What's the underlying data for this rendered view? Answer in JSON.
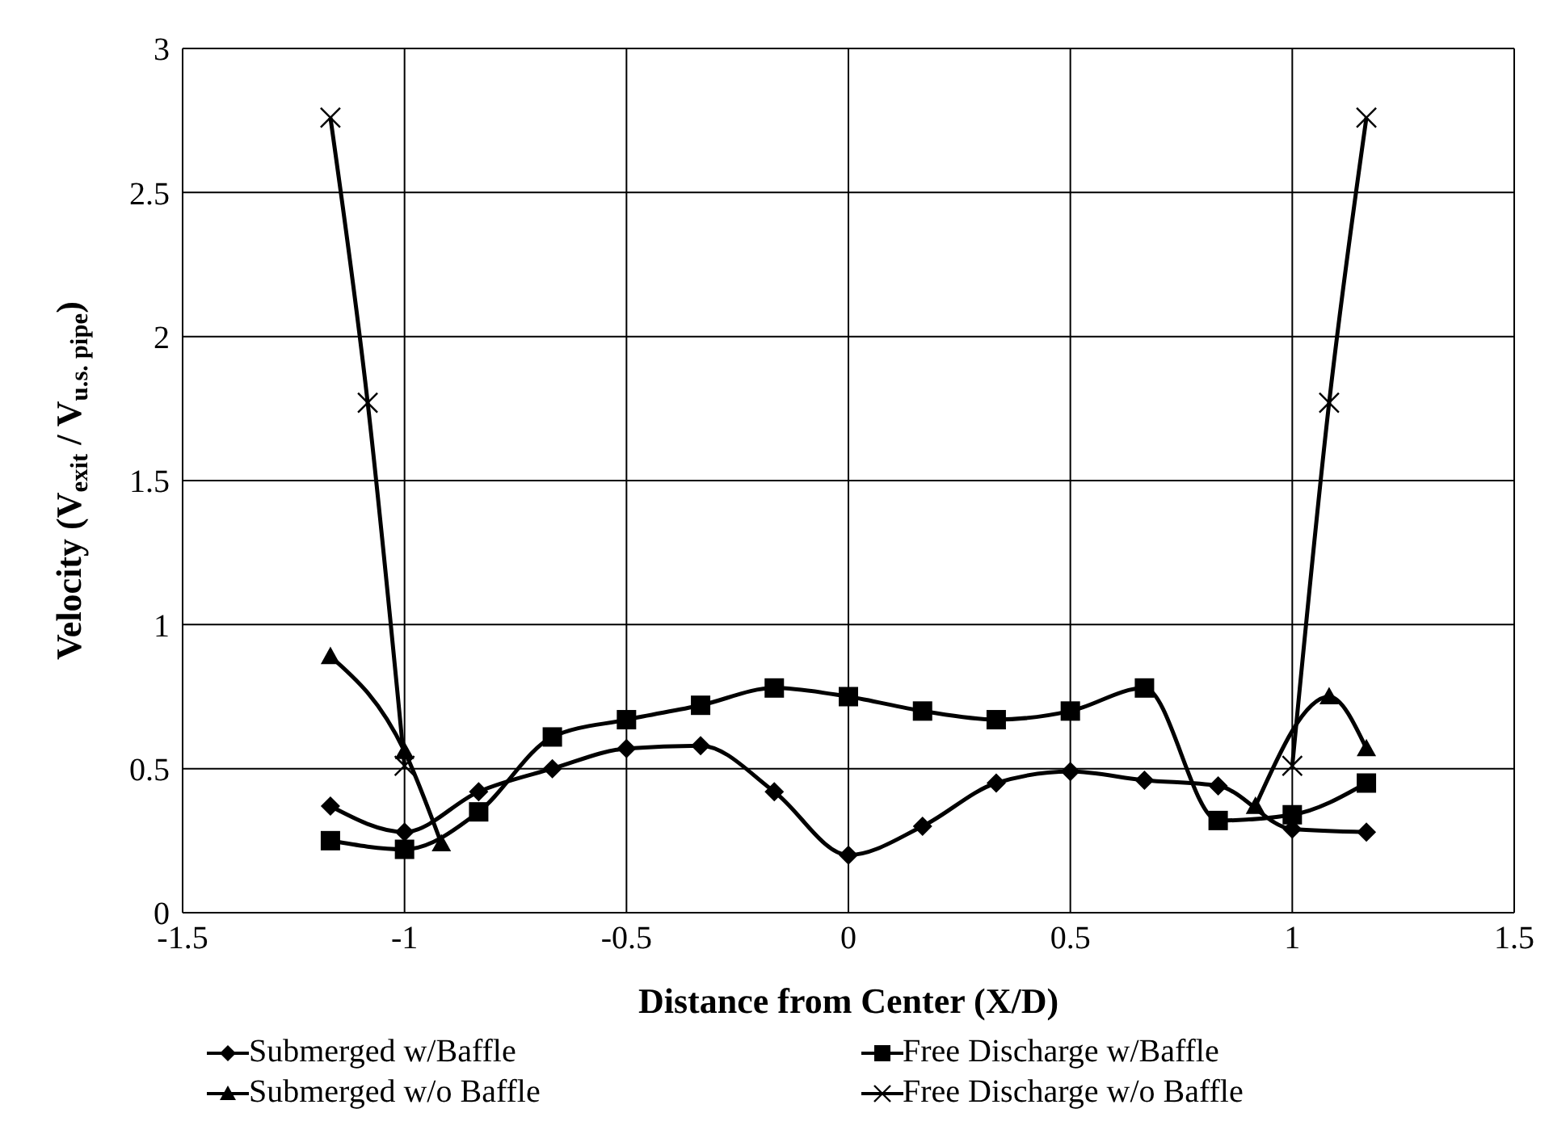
{
  "chart_data": {
    "type": "line",
    "xlabel": "Distance from Center (X/D)",
    "ylabel": "Velocity (V$_{exit}$ / V$_{u.s. pipe}$)",
    "xlim": [
      -1.5,
      1.5
    ],
    "xticks": [
      -1.5,
      -1,
      -0.5,
      0,
      0.5,
      1,
      1.5
    ],
    "ylim": [
      0,
      3
    ],
    "yticks": [
      0,
      0.5,
      1,
      1.5,
      2,
      2.5,
      3
    ],
    "grid": true,
    "legend": "bottom",
    "series": [
      {
        "name": "Submerged w/Baffle",
        "color": "#000000",
        "marker": "diamond",
        "x": [
          -1.167,
          -1,
          -0.833,
          -0.667,
          -0.5,
          -0.333,
          -0.167,
          0,
          0.167,
          0.333,
          0.5,
          0.667,
          0.833,
          1,
          1.167
        ],
        "values": [
          0.37,
          0.28,
          0.42,
          0.5,
          0.57,
          0.58,
          0.42,
          0.2,
          0.3,
          0.45,
          0.49,
          0.46,
          0.44,
          0.29,
          0.28
        ]
      },
      {
        "name": "Free Discharge w/Baffle",
        "color": "#000000",
        "marker": "square",
        "x": [
          -1.167,
          -1,
          -0.833,
          -0.667,
          -0.5,
          -0.333,
          -0.167,
          0,
          0.167,
          0.333,
          0.5,
          0.667,
          0.833,
          1,
          1.167
        ],
        "values": [
          0.25,
          0.22,
          0.35,
          0.61,
          0.67,
          0.72,
          0.78,
          0.75,
          0.7,
          0.67,
          0.7,
          0.78,
          0.32,
          0.34,
          0.45
        ]
      },
      {
        "name": "Submerged w/o Baffle",
        "color": "#000000",
        "marker": "triangle",
        "x": [
          -1.167,
          -1,
          -0.917,
          0,
          0.917,
          1.083,
          1.167
        ],
        "values": [
          0.89,
          0.56,
          0.24,
          null,
          0.37,
          0.75,
          0.57
        ]
      },
      {
        "name": "Free Discharge w/o Baffle",
        "color": "#000000",
        "marker": "cross",
        "x": [
          -1.167,
          -1.083,
          -1,
          0,
          1,
          1.083,
          1.167
        ],
        "values": [
          2.76,
          1.77,
          0.51,
          null,
          0.51,
          1.77,
          2.76
        ]
      }
    ]
  }
}
